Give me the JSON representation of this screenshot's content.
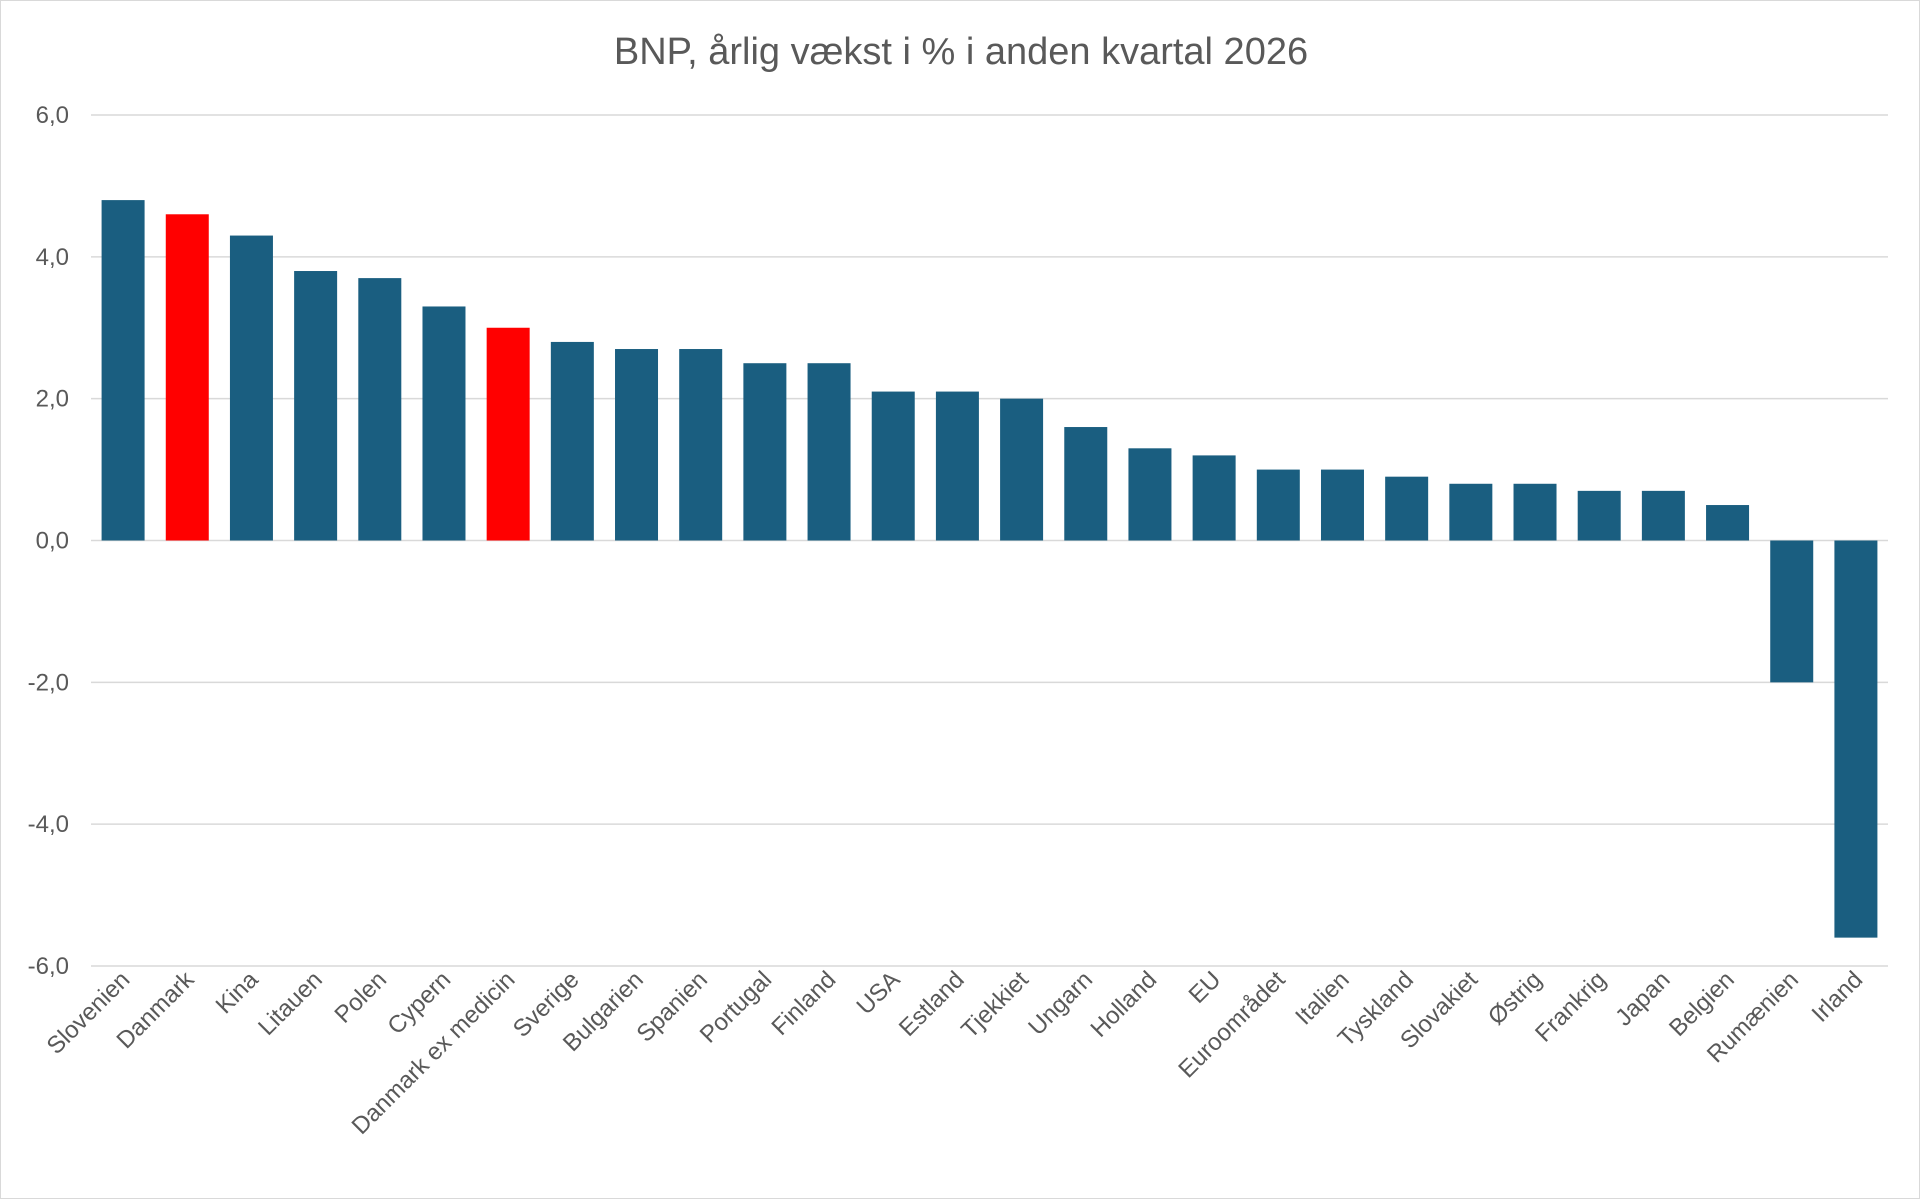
{
  "chart_data": {
    "type": "bar",
    "title": "BNP, årlig vækst i % i anden kvartal 2026",
    "xlabel": "",
    "ylabel": "",
    "ylim": [
      -6,
      6
    ],
    "yticks": [
      6,
      4,
      2,
      0,
      -2,
      -4,
      -6
    ],
    "ytick_labels": [
      "6,0",
      "4,0",
      "2,0",
      "0,0",
      "-2,0",
      "-4,0",
      "-6,0"
    ],
    "grid": true,
    "legend": "none",
    "categories": [
      "Slovenien",
      "Danmark",
      "Kina",
      "Litauen",
      "Polen",
      "Cypern",
      "Danmark ex medicin",
      "Sverige",
      "Bulgarien",
      "Spanien",
      "Portugal",
      "Finland",
      "USA",
      "Estland",
      "Tjekkiet",
      "Ungarn",
      "Holland",
      "EU",
      "Euroområdet",
      "Italien",
      "Tyskland",
      "Slovakiet",
      "Østrig",
      "Frankrig",
      "Japan",
      "Belgien",
      "Rumænien",
      "Irland"
    ],
    "values": [
      4.8,
      4.6,
      4.3,
      3.8,
      3.7,
      3.3,
      3.0,
      2.8,
      2.7,
      2.7,
      2.5,
      2.5,
      2.1,
      2.1,
      2.0,
      1.6,
      1.3,
      1.2,
      1.0,
      1.0,
      0.9,
      0.8,
      0.8,
      0.7,
      0.7,
      0.5,
      -2.0,
      -5.6
    ],
    "colors": {
      "default": "#1a5e80",
      "highlight": "#ff0000",
      "highlighted_categories": [
        "Danmark",
        "Danmark ex medicin"
      ]
    }
  }
}
